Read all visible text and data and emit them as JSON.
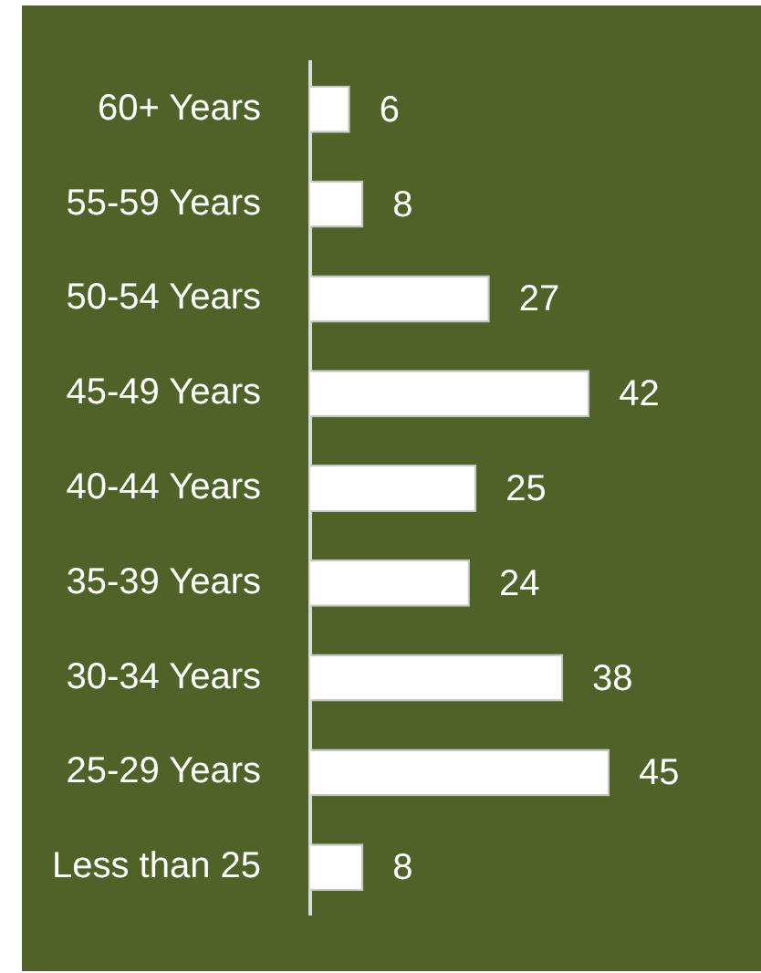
{
  "chart_data": {
    "type": "bar",
    "orientation": "horizontal",
    "categories": [
      "60+ Years",
      "55-59 Years",
      "50-54 Years",
      "45-49 Years",
      "40-44 Years",
      "35-39 Years",
      "30-34 Years",
      "25-29 Years",
      "Less than 25"
    ],
    "values": [
      6,
      8,
      27,
      42,
      25,
      24,
      38,
      45,
      8
    ],
    "color": "#ffffff",
    "data_labels": true
  }
}
